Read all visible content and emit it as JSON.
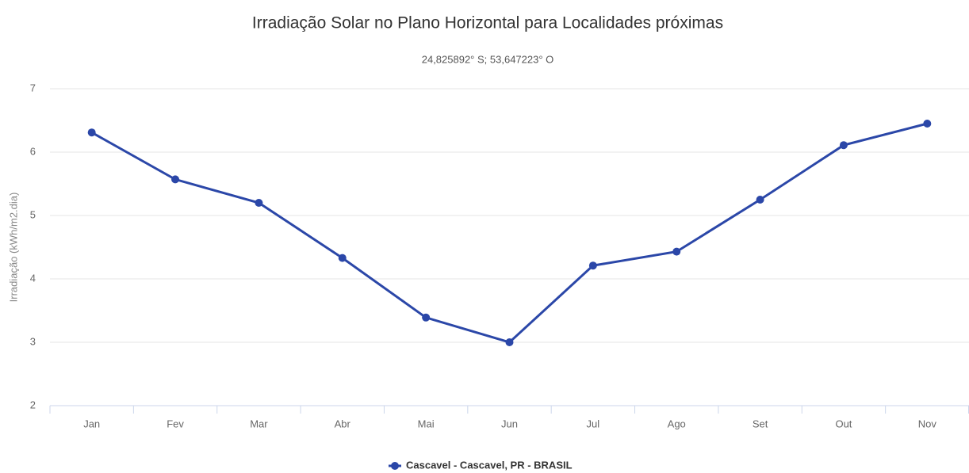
{
  "chart_data": {
    "type": "line",
    "title": "Irradiação Solar no Plano Horizontal para Localidades próximas",
    "subtitle": "24,825892° S; 53,647223° O",
    "y_label": "Irradiação (kWh/m2.dia)",
    "categories": [
      "Jan",
      "Fev",
      "Mar",
      "Abr",
      "Mai",
      "Jun",
      "Jul",
      "Ago",
      "Set",
      "Out",
      "Nov"
    ],
    "series": [
      {
        "name": "Cascavel - Cascavel, PR - BRASIL",
        "color": "#2b47a8",
        "values": [
          6.31,
          5.57,
          5.2,
          4.33,
          3.39,
          3.0,
          4.21,
          4.43,
          5.25,
          6.11,
          6.45
        ]
      }
    ],
    "ylim": [
      2,
      7
    ],
    "yticks": [
      2,
      3,
      4,
      5,
      6,
      7
    ],
    "grid": true,
    "legend": "bottom"
  }
}
